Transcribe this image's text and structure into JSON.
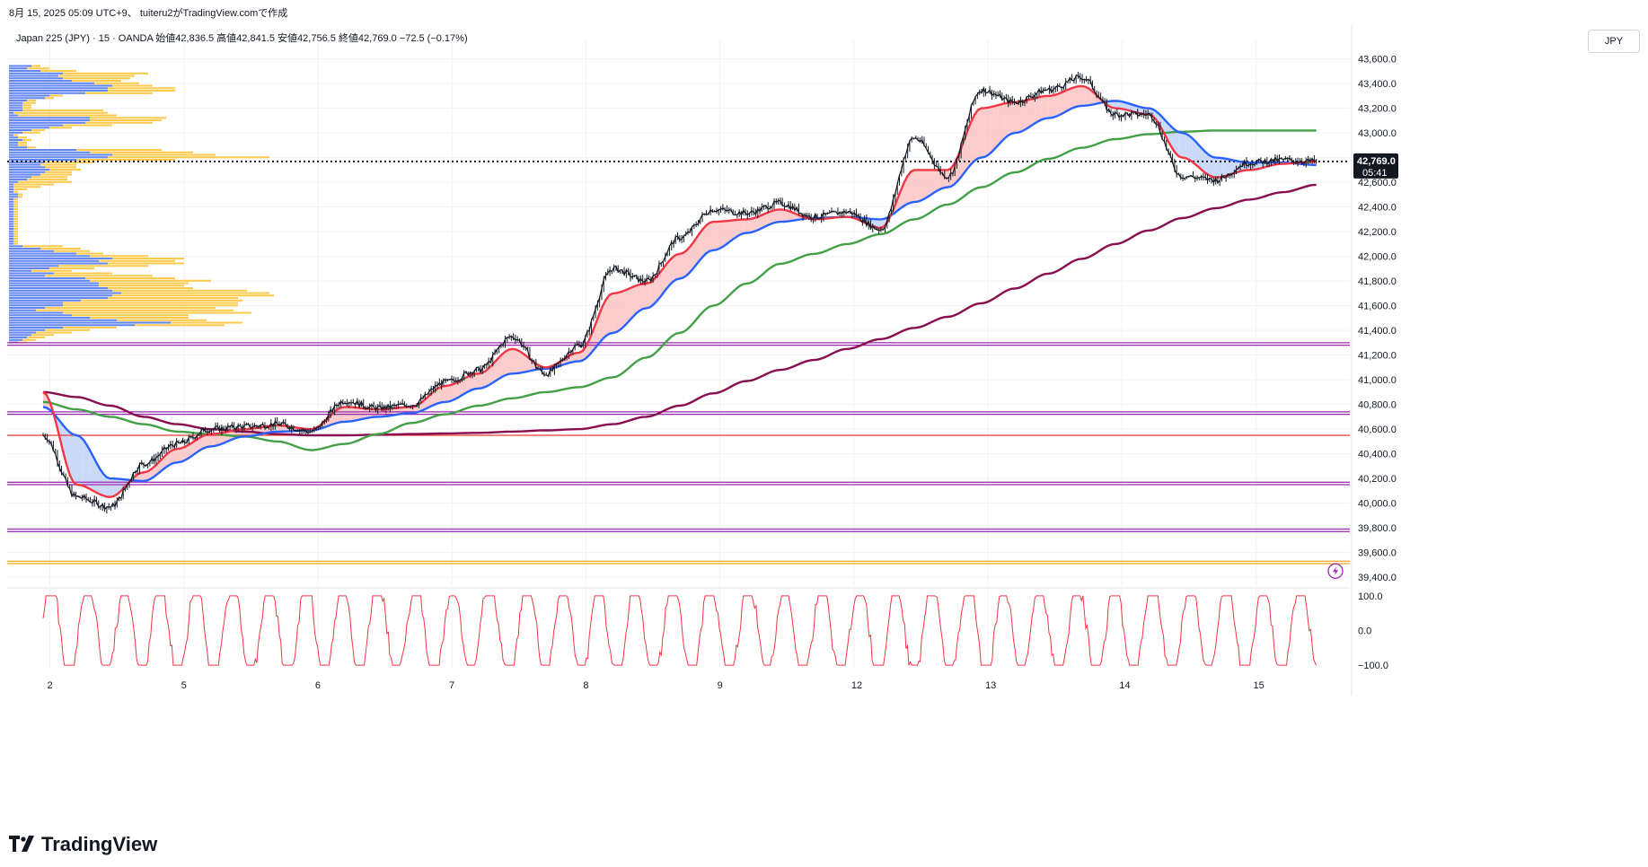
{
  "header": {
    "meta": "8月 15, 2025 05:09 UTC+9、 tuiteru2がTradingView.comで作成",
    "legend": "Japan 225 (JPY) · 15 · OANDA  始値42,836.5  高値42,841.5  安値42,756.5  終値42,769.0  −72.5 (−0.17%)"
  },
  "currency_button": "JPY",
  "price_label": {
    "value": "42,769.0",
    "countdown": "05:41"
  },
  "brand": "TradingView",
  "colors": {
    "ema_fast": "#f23645",
    "ema_mid": "#2962ff",
    "ema_slow": "#43a047",
    "ema_long": "#880e4f",
    "candles": "#131722",
    "fill_bull": "#f8bbbb",
    "fill_bear": "#b9ccf7",
    "vp_buy": "#5b7ff0",
    "vp_sell": "#fcc845",
    "oscillator": "#f23645",
    "hline_purple": "#9c27b0",
    "hline_red": "#e53935",
    "hline_orange": "#f5a623"
  },
  "chart_data": [
    {
      "type": "line",
      "title": "",
      "xlabel": "",
      "ylabel": "",
      "x_ticks": [
        "2",
        "5",
        "6",
        "7",
        "8",
        "9",
        "12",
        "13",
        "14",
        "15"
      ],
      "y_ticks": [
        "43,600.0",
        "43,400.0",
        "43,200.0",
        "43,000.0",
        "42,800.0",
        "42,600.0",
        "42,400.0",
        "42,200.0",
        "42,000.0",
        "41,800.0",
        "41,600.0",
        "41,400.0",
        "41,200.0",
        "41,000.0",
        "40,800.0",
        "40,600.0",
        "40,400.0",
        "40,200.0",
        "40,000.0",
        "39,800.0",
        "39,600.0",
        "39,400.0"
      ],
      "ylim": [
        39350,
        43750
      ],
      "x": [
        0,
        0.25,
        0.5,
        0.75,
        1.0,
        1.25,
        1.5,
        1.75,
        2.0,
        2.25,
        2.5,
        2.75,
        3.0,
        3.25,
        3.5,
        3.75,
        4.0,
        4.25,
        4.5,
        4.75,
        5.0,
        5.25,
        5.5,
        5.75,
        6.0,
        6.25,
        6.5,
        6.75,
        7.0,
        7.25,
        7.5,
        7.75,
        8.0,
        8.25,
        8.5,
        8.75,
        9.0,
        9.25,
        9.5
      ],
      "series": [
        {
          "name": "",
          "role": "price",
          "values": [
            40550,
            40050,
            39970,
            40320,
            40480,
            40600,
            40620,
            40640,
            40580,
            40830,
            40770,
            40800,
            40980,
            41080,
            41350,
            41050,
            41280,
            41900,
            41800,
            42150,
            42380,
            42350,
            42430,
            42320,
            42360,
            42220,
            42960,
            42650,
            43350,
            43250,
            43350,
            43450,
            43150,
            43150,
            42650,
            42620,
            42760,
            42780,
            42769
          ]
        },
        {
          "name": "",
          "role": "ema_fast",
          "values": [
            40900,
            40150,
            40050,
            40250,
            40440,
            40560,
            40600,
            40630,
            40600,
            40780,
            40760,
            40780,
            40950,
            41050,
            41250,
            41100,
            41220,
            41700,
            41780,
            42020,
            42280,
            42300,
            42380,
            42300,
            42320,
            42230,
            42700,
            42700,
            43200,
            43250,
            43300,
            43380,
            43200,
            43150,
            42800,
            42640,
            42700,
            42750,
            42769
          ]
        },
        {
          "name": "",
          "role": "ema_mid",
          "values": [
            40780,
            40550,
            40200,
            40180,
            40330,
            40460,
            40540,
            40580,
            40590,
            40660,
            40700,
            40730,
            40820,
            40930,
            41050,
            41090,
            41150,
            41380,
            41580,
            41820,
            42050,
            42190,
            42280,
            42310,
            42320,
            42300,
            42440,
            42560,
            42800,
            43000,
            43120,
            43220,
            43260,
            43200,
            43000,
            42800,
            42760,
            42760,
            42740
          ]
        },
        {
          "name": "",
          "role": "ema_slow",
          "values": [
            40820,
            40760,
            40700,
            40640,
            40580,
            40560,
            40540,
            40500,
            40430,
            40480,
            40560,
            40650,
            40720,
            40790,
            40850,
            40900,
            40940,
            41020,
            41180,
            41380,
            41600,
            41780,
            41940,
            42020,
            42100,
            42180,
            42300,
            42420,
            42560,
            42680,
            42790,
            42880,
            42950,
            42990,
            43010,
            43020,
            43020,
            43020,
            43020
          ]
        },
        {
          "name": "",
          "role": "ema_long",
          "values": [
            40900,
            40860,
            40790,
            40700,
            40640,
            40600,
            40580,
            40560,
            40550,
            40550,
            40555,
            40560,
            40565,
            40570,
            40580,
            40590,
            40600,
            40640,
            40700,
            40790,
            40890,
            40990,
            41080,
            41160,
            41250,
            41330,
            41420,
            41510,
            41620,
            41740,
            41860,
            41980,
            42100,
            42210,
            42310,
            42390,
            42460,
            42520,
            42580
          ]
        }
      ],
      "horizontal_lines": [
        {
          "value": 42769,
          "style": "dotted",
          "color": "#131722"
        },
        {
          "value": 41300,
          "color": "#9c27b0"
        },
        {
          "value": 41280,
          "color": "#9c27b0"
        },
        {
          "value": 40740,
          "color": "#9c27b0"
        },
        {
          "value": 40720,
          "color": "#9c27b0"
        },
        {
          "value": 40550,
          "color": "#e53935"
        },
        {
          "value": 40170,
          "color": "#9c27b0"
        },
        {
          "value": 40150,
          "color": "#9c27b0"
        },
        {
          "value": 39790,
          "color": "#9c27b0"
        },
        {
          "value": 39770,
          "color": "#9c27b0"
        },
        {
          "value": 39530,
          "color": "#f5a623"
        },
        {
          "value": 39510,
          "color": "#f5a623"
        }
      ],
      "volume_profile": {
        "price_start": 43550,
        "price_step": 20,
        "buy": [
          25,
          20,
          35,
          60,
          55,
          60,
          70,
          95,
          115,
          110,
          110,
          85,
          45,
          40,
          20,
          15,
          15,
          15,
          15,
          5,
          10,
          90,
          90,
          85,
          60,
          45,
          25,
          15,
          5,
          10,
          15,
          10,
          10,
          20,
          75,
          90,
          115,
          110,
          75,
          40,
          35,
          40,
          45,
          40,
          35,
          25,
          20,
          10,
          5,
          5,
          5,
          5,
          10,
          10,
          5,
          5,
          5,
          5,
          5,
          5,
          5,
          5,
          5,
          5,
          5,
          5,
          5,
          5,
          5,
          5,
          5,
          5,
          5,
          15,
          35,
          50,
          75,
          90,
          115,
          100,
          110,
          55,
          45,
          25,
          50,
          40,
          85,
          90,
          100,
          100,
          110,
          115,
          125,
          115,
          110,
          80,
          60,
          60,
          40,
          30,
          60,
          70,
          90,
          120,
          180,
          140,
          60,
          40,
          30,
          25,
          20,
          15,
          10
        ],
        "sell": [
          10,
          25,
          40,
          95,
          85,
          75,
          55,
          50,
          45,
          75,
          75,
          75,
          15,
          10,
          10,
          15,
          10,
          10,
          90,
          105,
          110,
          85,
          80,
          75,
          55,
          25,
          15,
          20,
          5,
          10,
          10,
          10,
          10,
          10,
          95,
          115,
          115,
          180,
          110,
          55,
          40,
          35,
          35,
          30,
          35,
          40,
          45,
          60,
          45,
          30,
          15,
          5,
          5,
          5,
          5,
          5,
          5,
          5,
          5,
          5,
          5,
          5,
          5,
          5,
          5,
          5,
          5,
          5,
          5,
          5,
          5,
          5,
          5,
          45,
          45,
          40,
          30,
          65,
          80,
          85,
          85,
          100,
          50,
          45,
          65,
          120,
          100,
          135,
          100,
          95,
          95,
          150,
          165,
          180,
          145,
          180,
          195,
          195,
          190,
          220,
          210,
          130,
          110,
          100,
          80,
          100,
          60,
          50,
          40,
          25,
          20,
          15,
          10
        ]
      }
    },
    {
      "type": "line",
      "title": "",
      "y_ticks": [
        "100.0",
        "0.0",
        "−100.0"
      ],
      "ylim": [
        -110,
        110
      ],
      "series": [
        {
          "name": "",
          "role": "oscillator",
          "values": []
        }
      ]
    }
  ]
}
